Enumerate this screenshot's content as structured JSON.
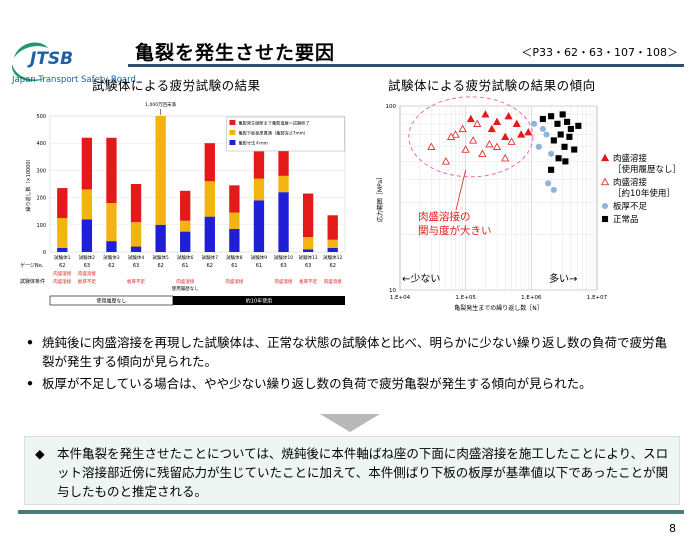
{
  "header": {
    "logo_text": "JTSB",
    "logo_subtitle": "Japan Transport Safety Board",
    "title": "亀裂を発生させた要因",
    "reference": "＜P33・62・63・107・108＞"
  },
  "left_chart_title": "試験体による疲労試験の結果",
  "right_chart_title": "試験体による疲労試験の結果の傾向",
  "bullets": [
    "焼鈍後に肉盛溶接を再現した試験体は、正常な状態の試験体と比べ、明らかに少ない繰り返し数の負荷で疲労亀裂が発生する傾向が見られた。",
    "板厚が不足している場合は、やや少ない繰り返し数の負荷で疲労亀裂が発生する傾向が見られた。"
  ],
  "conclusion": "本件亀裂を発生させたことについては、焼鈍後に本件軸ばね座の下面に肉盛溶接を施工したことにより、スロット溶接部近傍に残留応力が生じていたことに加えて、本件側ばり下板の板厚が基準値以下であったことが関与したものと推定される。",
  "page_number": "8",
  "chart_data": [
    {
      "type": "bar",
      "stacked": true,
      "ylabel": "繰り返し数（×10000）",
      "ylim": [
        0,
        500
      ],
      "yticks": [
        0,
        100,
        200,
        300,
        400,
        500
      ],
      "categories": [
        "試験体1",
        "試験体2",
        "試験体3",
        "試験体4",
        "試験体5",
        "試験体6",
        "試験体7",
        "試験体8",
        "試験体9",
        "試験体10",
        "試験体11",
        "試験体12"
      ],
      "gauge_row_label": "ゲージNo.",
      "gauge": [
        "62",
        "63",
        "62",
        "63",
        "62",
        "61",
        "62",
        "61",
        "61",
        "63",
        "63",
        "62"
      ],
      "condition_row_label": "試験体条件",
      "condition_labels": [
        "肉盛溶接",
        "板厚不足",
        "",
        "板厚不足",
        "",
        "肉盛溶接",
        "",
        "肉盛溶接",
        "",
        "肉盛溶接",
        "板厚不足",
        "肉盛溶接"
      ],
      "condition_sub_labels": [
        "肉盛溶接",
        "肉盛溶接",
        "",
        "",
        "",
        "",
        "",
        "",
        "",
        "",
        "",
        ""
      ],
      "history_labels": [
        "",
        "",
        "",
        "",
        "",
        "使用履歴なし",
        "",
        "",
        "",
        "",
        "",
        ""
      ],
      "group_labels": [
        "使用履歴なし",
        "約10年使用"
      ],
      "top_annotation": "1,000万回未満",
      "series": [
        {
          "name": "亀裂寸法４ｍｍ",
          "color": "#1f1fd6",
          "values": [
            15,
            120,
            40,
            20,
            100,
            75,
            130,
            85,
            190,
            220,
            10,
            15
          ]
        },
        {
          "name": "亀裂下板板厚貫通（亀裂深さ7mm）",
          "color": "#f3b411",
          "values": [
            110,
            110,
            140,
            90,
            400,
            40,
            130,
            60,
            80,
            60,
            45,
            30
          ]
        },
        {
          "name": "亀裂発生破断まで亀裂進展＝試験終了",
          "color": "#e41a1a",
          "values": [
            110,
            190,
            240,
            140,
            0,
            110,
            140,
            100,
            100,
            190,
            160,
            90
          ]
        }
      ]
    },
    {
      "type": "scatter",
      "xscale": "log",
      "yscale": "log",
      "xlim": [
        10000,
        10000000
      ],
      "ylim": [
        10,
        100
      ],
      "xticks": [
        "1.E+04",
        "1.E+05",
        "1.E+06",
        "1.E+07"
      ],
      "yticks": [
        "10",
        "100"
      ],
      "xlabel": "亀裂発生までの繰り返し数［N］",
      "ylabel": "応力範囲［MPa］",
      "annotation": "肉盛溶接の関与度が大きい",
      "annotation_lines": [
        "肉盛溶接の",
        "関与度が大きい"
      ],
      "less_label": "←少ない",
      "more_label": "多い→",
      "series": [
        {
          "name": "肉盛溶接\n［使用履歴なし］",
          "legend_lines": [
            "肉盛溶接",
            "［使用履歴なし］"
          ],
          "marker": "triangle-filled",
          "color": "#e41a1a",
          "points": [
            [
              120000,
              85
            ],
            [
              200000,
              90
            ],
            [
              300000,
              82
            ],
            [
              450000,
              88
            ],
            [
              600000,
              80
            ],
            [
              250000,
              75
            ],
            [
              700000,
              70
            ],
            [
              400000,
              68
            ],
            [
              900000,
              72
            ]
          ]
        },
        {
          "name": "肉盛溶接\n［約10年使用］",
          "legend_lines": [
            "肉盛溶接",
            "［約10年使用］"
          ],
          "marker": "triangle-open",
          "color": "#e41a1a",
          "points": [
            [
              30000,
              60
            ],
            [
              50000,
              50
            ],
            [
              70000,
              70
            ],
            [
              100000,
              58
            ],
            [
              130000,
              65
            ],
            [
              180000,
              55
            ],
            [
              230000,
              62
            ],
            [
              300000,
              60
            ],
            [
              400000,
              52
            ],
            [
              500000,
              64
            ],
            [
              60000,
              68
            ],
            [
              90000,
              75
            ],
            [
              150000,
              80
            ]
          ]
        },
        {
          "name": "板厚不足",
          "marker": "circle",
          "color": "#8fb3df",
          "points": [
            [
              1100000,
              80
            ],
            [
              1500000,
              75
            ],
            [
              1700000,
              70
            ],
            [
              1300000,
              60
            ],
            [
              2000000,
              55
            ],
            [
              1800000,
              38
            ],
            [
              2200000,
              35
            ]
          ]
        },
        {
          "name": "正常品",
          "marker": "square",
          "color": "#000000",
          "points": [
            [
              1500000,
              85
            ],
            [
              2000000,
              88
            ],
            [
              2500000,
              80
            ],
            [
              3000000,
              90
            ],
            [
              3500000,
              82
            ],
            [
              4000000,
              75
            ],
            [
              2200000,
              65
            ],
            [
              2800000,
              70
            ],
            [
              3200000,
              60
            ],
            [
              3800000,
              68
            ],
            [
              2600000,
              52
            ],
            [
              3300000,
              50
            ],
            [
              4500000,
              58
            ],
            [
              5200000,
              78
            ],
            [
              2000000,
              45
            ]
          ]
        }
      ]
    }
  ]
}
